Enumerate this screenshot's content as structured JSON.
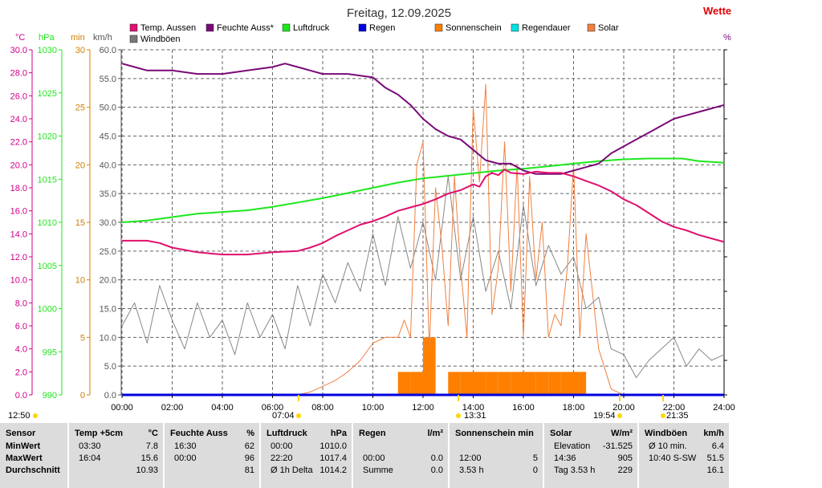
{
  "title": "Freitag, 12.09.2025",
  "brand": "Wette",
  "right_axis_unit": "%",
  "axis_units": {
    "temp": "°C",
    "pressure": "hPa",
    "minutes": "min",
    "wind": "km/h"
  },
  "colors": {
    "temp": "#e0106e",
    "humidity": "#7a0a78",
    "pressure": "#1ee61e",
    "rain": "#0000e0",
    "sunshine": "#ff8000",
    "rain_duration": "#00e0e0",
    "solar": "#f08040",
    "gust": "#888888",
    "temp_axis": "#d0008a",
    "minutes_axis": "#d08000",
    "grid": "#666666",
    "event": "#ffd700"
  },
  "legend": [
    {
      "label": "Temp. Aussen",
      "color": "#e0106e"
    },
    {
      "label": "Feuchte Auss*",
      "color": "#7a0a78"
    },
    {
      "label": "Luftdruck",
      "color": "#1ee61e"
    },
    {
      "label": "Regen",
      "color": "#0000e0"
    },
    {
      "label": "Sonnenschein",
      "color": "#ff8000"
    },
    {
      "label": "Regendauer",
      "color": "#00e0e0"
    },
    {
      "label": "Solar",
      "color": "#f08040"
    },
    {
      "label": "Windböen",
      "color": "#777777"
    }
  ],
  "events": [
    {
      "label": "12:50",
      "marker": "sun"
    },
    {
      "label": "07:04",
      "marker": "sunrise"
    },
    {
      "label": "13:31",
      "marker": "noon"
    },
    {
      "label": "19:54",
      "marker": "sunset"
    },
    {
      "label": "21:35",
      "marker": "moon"
    }
  ],
  "chart_data": {
    "type": "line",
    "title": "Freitag, 12.09.2025",
    "x_unit": "hours",
    "x_ticks": [
      "00:00",
      "02:00",
      "04:00",
      "06:00",
      "08:00",
      "10:00",
      "12:00",
      "14:00",
      "16:00",
      "18:00",
      "20:00",
      "22:00",
      "24:00"
    ],
    "x_range": [
      0,
      24
    ],
    "axes": {
      "temp": {
        "unit": "°C",
        "range": [
          0,
          30
        ],
        "ticks": [
          "0.0",
          "2.0",
          "4.0",
          "6.0",
          "8.0",
          "10.0",
          "12.0",
          "14.0",
          "16.0",
          "18.0",
          "20.0",
          "22.0",
          "24.0",
          "26.0",
          "28.0",
          "30.0"
        ]
      },
      "pressure": {
        "unit": "hPa",
        "range": [
          990,
          1030
        ],
        "ticks": [
          "990",
          "995",
          "1000",
          "1005",
          "1010",
          "1015",
          "1020",
          "1025",
          "1030"
        ]
      },
      "minutes": {
        "unit": "min",
        "range": [
          0,
          30
        ],
        "ticks": [
          "0",
          "5",
          "10",
          "15",
          "20",
          "25",
          "30"
        ]
      },
      "wind": {
        "unit": "km/h",
        "range": [
          0,
          60
        ],
        "ticks": [
          "0.0",
          "5.0",
          "10.0",
          "15.0",
          "20.0",
          "25.0",
          "30.0",
          "35.0",
          "40.0",
          "45.0",
          "50.0",
          "55.0",
          "60.0"
        ]
      },
      "humidity": {
        "unit": "%",
        "range": [
          0,
          100
        ]
      }
    },
    "grid": true,
    "legend_position": "top",
    "series": [
      {
        "name": "Temp. Aussen",
        "axis": "temp",
        "x": [
          0,
          0.5,
          1,
          1.5,
          2,
          2.5,
          3,
          3.5,
          4,
          5,
          6,
          7,
          7.5,
          8,
          8.5,
          9,
          9.5,
          10,
          10.5,
          11,
          11.5,
          12,
          12.5,
          13,
          13.5,
          14,
          14.25,
          14.5,
          14.75,
          15,
          15.25,
          15.5,
          16,
          16.5,
          17,
          17.5,
          18,
          18.5,
          19,
          19.5,
          20,
          20.5,
          21,
          21.5,
          22,
          22.5,
          23,
          23.5,
          24
        ],
        "y": [
          13.4,
          13.4,
          13.4,
          13.2,
          12.8,
          12.6,
          12.4,
          12.3,
          12.2,
          12.2,
          12.4,
          12.5,
          12.8,
          13.2,
          13.8,
          14.3,
          14.8,
          15.1,
          15.5,
          16.0,
          16.3,
          16.6,
          17.0,
          17.5,
          17.8,
          18.3,
          18.1,
          19.0,
          19.3,
          19.1,
          19.6,
          19.3,
          19.2,
          19.4,
          19.3,
          19.3,
          19.0,
          18.6,
          18.2,
          17.7,
          17.0,
          16.5,
          15.8,
          15.1,
          14.6,
          14.3,
          13.9,
          13.6,
          13.3
        ]
      },
      {
        "name": "Feuchte Auss*",
        "axis": "humidity",
        "x": [
          0,
          0.5,
          1,
          1.5,
          2,
          3,
          4,
          5,
          6,
          6.5,
          7,
          7.5,
          8,
          9,
          10,
          10.5,
          11,
          11.5,
          12,
          12.5,
          13,
          13.5,
          14,
          14.5,
          15,
          15.5,
          16,
          16.5,
          17,
          17.5,
          18,
          18.5,
          19,
          19.5,
          20,
          20.5,
          21,
          21.5,
          22,
          22.5,
          23,
          23.5,
          24
        ],
        "y": [
          96,
          95,
          94,
          94,
          94,
          93,
          93,
          94,
          95,
          96,
          95,
          94,
          93,
          93,
          92,
          89,
          87,
          84,
          80,
          77,
          75,
          74,
          71,
          68,
          67,
          67,
          65,
          64,
          64,
          64,
          65,
          66,
          67,
          70,
          72,
          74,
          76,
          78,
          80,
          81,
          82,
          83,
          84
        ]
      },
      {
        "name": "Luftdruck",
        "axis": "pressure",
        "x": [
          0,
          1,
          2,
          3,
          4,
          5,
          6,
          7,
          8,
          9,
          10,
          11,
          12,
          13,
          14,
          15,
          16,
          17,
          18,
          19,
          20,
          21,
          22,
          22.33,
          23,
          24
        ],
        "y": [
          1010.0,
          1010.2,
          1010.6,
          1011.0,
          1011.2,
          1011.4,
          1011.8,
          1012.3,
          1012.8,
          1013.4,
          1014.0,
          1014.6,
          1015.1,
          1015.4,
          1015.7,
          1016.0,
          1016.2,
          1016.5,
          1016.8,
          1017.1,
          1017.3,
          1017.4,
          1017.4,
          1017.4,
          1017.1,
          1016.9
        ]
      },
      {
        "name": "Regen",
        "axis": "minutes",
        "x": [
          0,
          24
        ],
        "y": [
          0,
          0
        ]
      },
      {
        "name": "Regendauer",
        "axis": "minutes",
        "x": [
          0,
          24
        ],
        "y": [
          0,
          0
        ]
      },
      {
        "name": "Sonnenschein",
        "axis": "minutes",
        "kind": "bar",
        "x": [
          11.25,
          11.75,
          12.25,
          13.25,
          13.75,
          14.25,
          14.75,
          15.25,
          15.75,
          16.25,
          16.75,
          17.25,
          17.75,
          18.25
        ],
        "y": [
          2,
          2,
          5,
          2,
          2,
          2,
          2,
          2,
          2,
          2,
          2,
          2,
          2,
          2
        ]
      },
      {
        "name": "Solar",
        "axis": "wind",
        "x": [
          7,
          7.5,
          8,
          8.5,
          9,
          9.5,
          10,
          10.5,
          11,
          11.25,
          11.5,
          11.75,
          12,
          12.25,
          12.5,
          12.75,
          13,
          13.25,
          13.5,
          13.75,
          14,
          14.25,
          14.5,
          14.75,
          15,
          15.25,
          15.5,
          15.75,
          16,
          16.25,
          16.5,
          16.75,
          17,
          17.25,
          17.5,
          17.75,
          18,
          18.25,
          18.5,
          19,
          19.5,
          20
        ],
        "y": [
          0,
          0.5,
          1.5,
          2.5,
          4,
          6,
          9,
          10,
          10,
          13,
          10,
          40,
          44,
          8,
          36,
          26,
          12,
          38,
          22,
          10,
          50,
          37,
          54,
          14,
          22,
          44,
          18,
          40,
          10,
          38,
          20,
          30,
          10,
          14,
          12,
          22,
          40,
          10,
          28,
          8,
          1,
          0
        ]
      },
      {
        "name": "Windböen",
        "axis": "wind",
        "x": [
          0,
          0.5,
          1,
          1.5,
          2,
          2.5,
          3,
          3.5,
          4,
          4.5,
          5,
          5.5,
          6,
          6.5,
          7,
          7.5,
          8,
          8.5,
          9,
          9.5,
          10,
          10.5,
          11,
          11.5,
          12,
          12.5,
          13,
          13.5,
          14,
          14.5,
          15,
          15.5,
          16,
          16.5,
          17,
          17.5,
          18,
          18.5,
          19,
          19.5,
          20,
          20.5,
          21,
          21.5,
          22,
          22.5,
          23,
          23.5,
          24
        ],
        "y": [
          12,
          16,
          9,
          19,
          13,
          8,
          16,
          10,
          13,
          7,
          16,
          10,
          14,
          8,
          19,
          12,
          21,
          16,
          23,
          18,
          28,
          19,
          31,
          22,
          30,
          20,
          38,
          20,
          31,
          18,
          25,
          15,
          33,
          19,
          26,
          21,
          24,
          15,
          17,
          8,
          7,
          3,
          6,
          8,
          10,
          5,
          8,
          6,
          7
        ]
      }
    ]
  },
  "stats": {
    "row_labels": [
      "Sensor",
      "MinWert",
      "MaxWert",
      "Durchschnitt"
    ],
    "blocks": [
      {
        "title": "Temp +5cm",
        "unit": "°C",
        "rows": [
          [
            "03:30",
            "7.8"
          ],
          [
            "16:04",
            "15.6"
          ],
          [
            "",
            "10.93"
          ]
        ]
      },
      {
        "title": "Feuchte Auss",
        "unit": "%",
        "rows": [
          [
            "16:30",
            "62"
          ],
          [
            "00:00",
            "96"
          ],
          [
            "",
            "81"
          ]
        ]
      },
      {
        "title": "Luftdruck",
        "unit": "hPa",
        "rows": [
          [
            "00:00",
            "1010.0"
          ],
          [
            "22:20",
            "1017.4"
          ],
          [
            "Ø 1h Delta",
            "1014.2"
          ]
        ]
      },
      {
        "title": "Regen",
        "unit": "l/m²",
        "rows": [
          [
            "",
            ""
          ],
          [
            "00:00",
            "0.0"
          ],
          [
            "Summe",
            "0.0"
          ]
        ]
      },
      {
        "title": "Sonnenschein min",
        "unit": "",
        "rows": [
          [
            "",
            ""
          ],
          [
            "12:00",
            "5"
          ],
          [
            "3.53 h",
            "0"
          ]
        ]
      },
      {
        "title": "Solar",
        "unit": "W/m²",
        "rows": [
          [
            "Elevation",
            "-31.525"
          ],
          [
            "14:36",
            "905"
          ],
          [
            "Tag 3.53 h",
            "229"
          ]
        ]
      },
      {
        "title": "Windböen",
        "unit": "km/h",
        "rows": [
          [
            "Ø 10 min.",
            "6.4"
          ],
          [
            "10:40 S-SW",
            "51.5"
          ],
          [
            "",
            "16.1"
          ]
        ]
      }
    ]
  }
}
